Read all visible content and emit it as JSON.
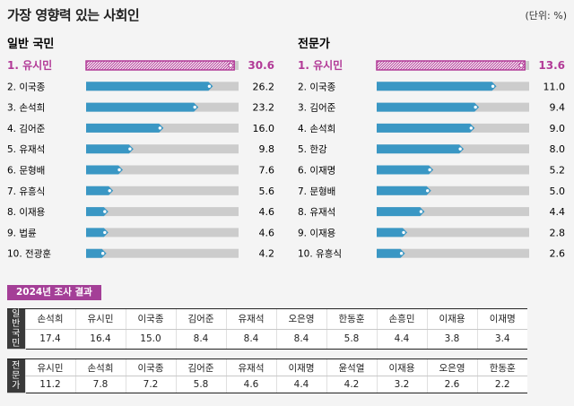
{
  "page": {
    "title": "가장 영향력 있는 사회인",
    "unit": "(단위: %)"
  },
  "chart_data": [
    {
      "type": "bar",
      "orientation": "horizontal",
      "title": "일반 국민",
      "xlim": [
        0,
        31.5
      ],
      "ranks": [
        "1. 유시민",
        "2. 이국종",
        "3. 손석희",
        "4. 김어준",
        "5. 유재석",
        "6. 문형배",
        "7. 유흥식",
        "8. 이재용",
        "9. 법륜",
        "10. 전광훈"
      ],
      "labels": [
        "30.6",
        "26.2",
        "23.2",
        "16.0",
        "9.8",
        "7.6",
        "5.6",
        "4.6",
        "4.6",
        "4.2"
      ],
      "values": [
        30.6,
        26.2,
        23.2,
        16.0,
        9.8,
        7.6,
        5.6,
        4.6,
        4.6,
        4.2
      ],
      "colors": {
        "top": "#b23a97",
        "bar": "#3a97c4",
        "track": "#cccccc"
      }
    },
    {
      "type": "bar",
      "orientation": "horizontal",
      "title": "전문가",
      "xlim": [
        0,
        14
      ],
      "ranks": [
        "1. 유시민",
        "2. 이국종",
        "3. 김어준",
        "4. 손석희",
        "5. 한강",
        "6. 이재명",
        "7. 문형배",
        "8. 유재석",
        "9. 이재용",
        "10. 유흥식"
      ],
      "labels": [
        "13.6",
        "11.0",
        "9.4",
        "9.0",
        "8.0",
        "5.2",
        "5.0",
        "4.4",
        "2.8",
        "2.6"
      ],
      "values": [
        13.6,
        11.0,
        9.4,
        9.0,
        8.0,
        5.2,
        5.0,
        4.4,
        2.8,
        2.6
      ],
      "colors": {
        "top": "#b23a97",
        "bar": "#3a97c4",
        "track": "#cccccc"
      }
    },
    {
      "type": "table",
      "title": "2024년 조사 결과",
      "rows": [
        {
          "header": "일반국민",
          "names": [
            "손석희",
            "유시민",
            "이국종",
            "김어준",
            "유재석",
            "오은영",
            "한동훈",
            "손흥민",
            "이재용",
            "이재명"
          ],
          "values": [
            "17.4",
            "16.4",
            "15.0",
            "8.4",
            "8.4",
            "8.4",
            "5.8",
            "4.4",
            "3.8",
            "3.4"
          ]
        },
        {
          "header": "전문가",
          "names": [
            "유시민",
            "손석희",
            "이국종",
            "김어준",
            "유재석",
            "이재명",
            "윤석열",
            "이재용",
            "오은영",
            "한동훈"
          ],
          "values": [
            "11.2",
            "7.8",
            "7.2",
            "5.8",
            "4.6",
            "4.4",
            "4.2",
            "3.2",
            "2.6",
            "2.2"
          ]
        }
      ]
    }
  ]
}
